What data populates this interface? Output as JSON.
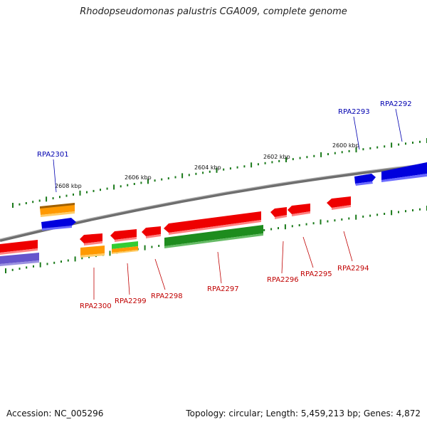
{
  "title": "Rhodopseudomonas palustris CGA009, complete genome",
  "footer": {
    "accession": "Accession: NC_005296",
    "summary": "Topology: circular; Length: 5,459,213 bp; Genes: 4,872"
  },
  "colors": {
    "backbone": "#808080",
    "forward_label": "#0000b0",
    "reverse_label": "#c00000",
    "tick": "#1a7a1a",
    "red": "#ee0000",
    "blue": "#0000ee",
    "orange": "#ff9900",
    "green": "#1e8c1e",
    "lime": "#33cc33",
    "purple": "#6655cc"
  },
  "scale_labels": [
    "2600 kbp",
    "2602 kbp",
    "2604 kbp",
    "2606 kbp",
    "2608 kbp"
  ],
  "genes": {
    "forward_labels": [
      "RPA2292",
      "RPA2293",
      "RPA2301"
    ],
    "reverse_labels": [
      "RPA2294",
      "RPA2295",
      "RPA2296",
      "RPA2297",
      "RPA2298",
      "RPA2299",
      "RPA2300"
    ]
  }
}
